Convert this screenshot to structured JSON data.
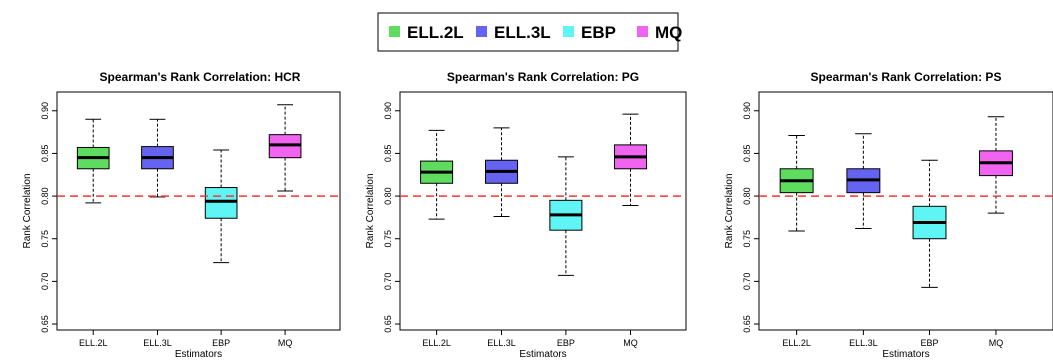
{
  "legend": {
    "items": [
      {
        "label": "ELL.2L",
        "color": "#5fdc5f"
      },
      {
        "label": "ELL.3L",
        "color": "#6464f0"
      },
      {
        "label": "EBP",
        "color": "#5ff5f5"
      },
      {
        "label": "MQ",
        "color": "#f064f0"
      }
    ]
  },
  "chart_data": [
    {
      "type": "box",
      "title": "Spearman's Rank Correlation: HCR",
      "xlabel": "Estimators",
      "ylabel": "Rank Correlation",
      "categories": [
        "ELL.2L",
        "ELL.3L",
        "EBP",
        "MQ"
      ],
      "colors": [
        "#5fdc5f",
        "#6464f0",
        "#5ff5f5",
        "#f064f0"
      ],
      "ylim": [
        0.65,
        0.92
      ],
      "yticks": [
        "0.65",
        "0.70",
        "0.75",
        "0.80",
        "0.85",
        "0.90"
      ],
      "reference_line": 0.8,
      "boxes": [
        {
          "min": 0.792,
          "q1": 0.832,
          "median": 0.845,
          "q3": 0.857,
          "max": 0.89
        },
        {
          "min": 0.799,
          "q1": 0.832,
          "median": 0.845,
          "q3": 0.858,
          "max": 0.89
        },
        {
          "min": 0.722,
          "q1": 0.774,
          "median": 0.794,
          "q3": 0.81,
          "max": 0.854
        },
        {
          "min": 0.806,
          "q1": 0.845,
          "median": 0.86,
          "q3": 0.872,
          "max": 0.907
        }
      ]
    },
    {
      "type": "box",
      "title": "Spearman's Rank Correlation: PG",
      "xlabel": "Estimators",
      "ylabel": "Rank Correlation",
      "categories": [
        "ELL.2L",
        "ELL.3L",
        "EBP",
        "MQ"
      ],
      "colors": [
        "#5fdc5f",
        "#6464f0",
        "#5ff5f5",
        "#f064f0"
      ],
      "ylim": [
        0.65,
        0.92
      ],
      "yticks": [
        "0.65",
        "0.70",
        "0.75",
        "0.80",
        "0.85",
        "0.90"
      ],
      "reference_line": 0.8,
      "boxes": [
        {
          "min": 0.773,
          "q1": 0.815,
          "median": 0.828,
          "q3": 0.841,
          "max": 0.877
        },
        {
          "min": 0.776,
          "q1": 0.815,
          "median": 0.829,
          "q3": 0.842,
          "max": 0.88
        },
        {
          "min": 0.707,
          "q1": 0.76,
          "median": 0.778,
          "q3": 0.795,
          "max": 0.846
        },
        {
          "min": 0.789,
          "q1": 0.832,
          "median": 0.846,
          "q3": 0.86,
          "max": 0.896
        }
      ]
    },
    {
      "type": "box",
      "title": "Spearman's Rank Correlation: PS",
      "xlabel": "Estimators",
      "ylabel": "Rank Correlation",
      "categories": [
        "ELL.2L",
        "ELL.3L",
        "EBP",
        "MQ"
      ],
      "colors": [
        "#5fdc5f",
        "#6464f0",
        "#5ff5f5",
        "#f064f0"
      ],
      "ylim": [
        0.65,
        0.92
      ],
      "yticks": [
        "0.65",
        "0.70",
        "0.75",
        "0.80",
        "0.85",
        "0.90"
      ],
      "reference_line": 0.8,
      "boxes": [
        {
          "min": 0.759,
          "q1": 0.804,
          "median": 0.818,
          "q3": 0.832,
          "max": 0.871
        },
        {
          "min": 0.762,
          "q1": 0.804,
          "median": 0.819,
          "q3": 0.832,
          "max": 0.873
        },
        {
          "min": 0.693,
          "q1": 0.75,
          "median": 0.769,
          "q3": 0.788,
          "max": 0.842
        },
        {
          "min": 0.78,
          "q1": 0.824,
          "median": 0.839,
          "q3": 0.853,
          "max": 0.893
        }
      ]
    }
  ]
}
